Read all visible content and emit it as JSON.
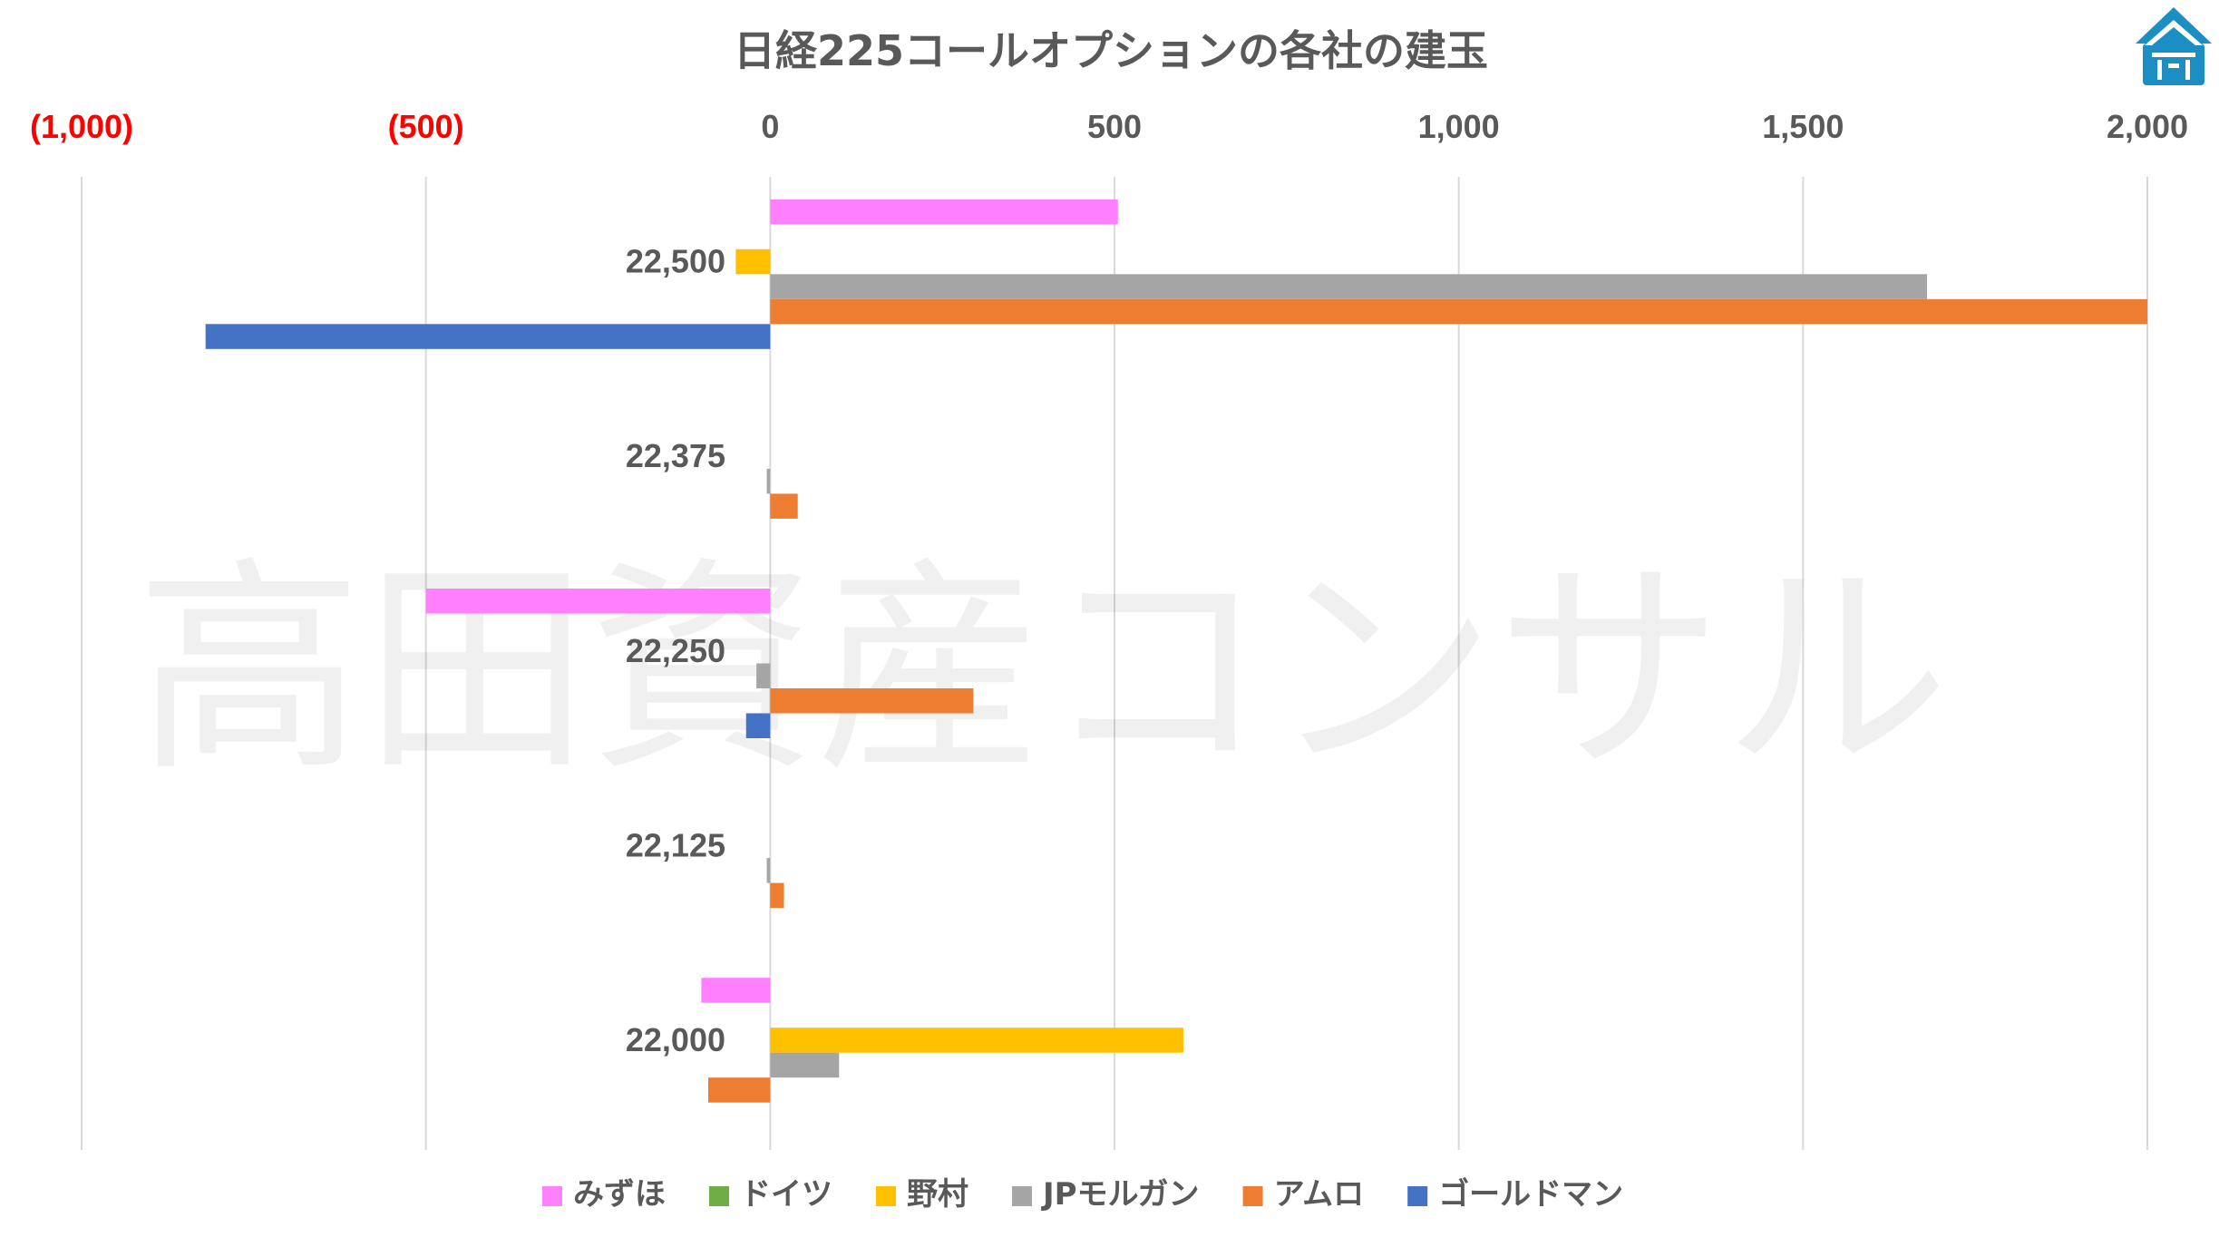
{
  "chart_data": {
    "type": "bar",
    "orientation": "horizontal",
    "title": "日経225コールオプションの各社の建玉",
    "xlim": [
      -1000,
      2000
    ],
    "x_ticks": [
      {
        "value": -1000,
        "label": "(1,000)"
      },
      {
        "value": -500,
        "label": "(500)"
      },
      {
        "value": 0,
        "label": "0"
      },
      {
        "value": 500,
        "label": "500"
      },
      {
        "value": 1000,
        "label": "1,000"
      },
      {
        "value": 1500,
        "label": "1,500"
      },
      {
        "value": 2000,
        "label": "2,000"
      }
    ],
    "axis_position": "top",
    "grid": true,
    "categories": [
      "22,500",
      "22,375",
      "22,250",
      "22,125",
      "22,000"
    ],
    "series": [
      {
        "name": "みずほ",
        "color": "#ff80ff",
        "values": [
          505,
          0,
          -500,
          0,
          -100
        ]
      },
      {
        "name": "ドイツ",
        "color": "#70ad47",
        "values": [
          0,
          0,
          0,
          0,
          0
        ]
      },
      {
        "name": "野村",
        "color": "#ffc000",
        "values": [
          -50,
          0,
          0,
          0,
          600
        ]
      },
      {
        "name": "JPモルガン",
        "color": "#a5a5a5",
        "values": [
          1680,
          -5,
          -20,
          -5,
          100
        ]
      },
      {
        "name": "アムロ",
        "color": "#ed7d31",
        "values": [
          2000,
          40,
          295,
          20,
          -90
        ]
      },
      {
        "name": "ゴールドマン",
        "color": "#4472c4",
        "values": [
          -820,
          0,
          -35,
          0,
          0
        ]
      }
    ],
    "legend": "bottom",
    "watermark": "高田資産コンサル"
  },
  "logo": {
    "name": "shrine-roof-logo",
    "color": "#1b8fc4"
  }
}
